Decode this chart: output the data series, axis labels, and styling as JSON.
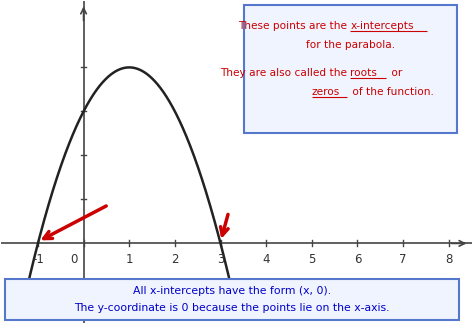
{
  "xlim": [
    -1.8,
    8.5
  ],
  "ylim": [
    -1.8,
    5.5
  ],
  "x_ticks": [
    -1,
    0,
    1,
    2,
    3,
    4,
    5,
    6,
    7,
    8
  ],
  "tick_labels": [
    "-1",
    "0",
    "1",
    "2",
    "3",
    "4",
    "5",
    "6",
    "7",
    "8"
  ],
  "parabola_roots": [
    -1,
    3
  ],
  "background_color": "#ffffff",
  "axes_color": "#444444",
  "parabola_color": "#222222",
  "arrow_color": "#cc0000",
  "box1_color": "#cc0000",
  "box1_bg": "#f0f4ff",
  "box1_edge": "#5577cc",
  "box2_color": "#0000cc",
  "box2_bg": "#f0f4ff",
  "box2_edge": "#5577cc",
  "parabola_linewidth": 1.8,
  "axis_linewidth": 1.2
}
